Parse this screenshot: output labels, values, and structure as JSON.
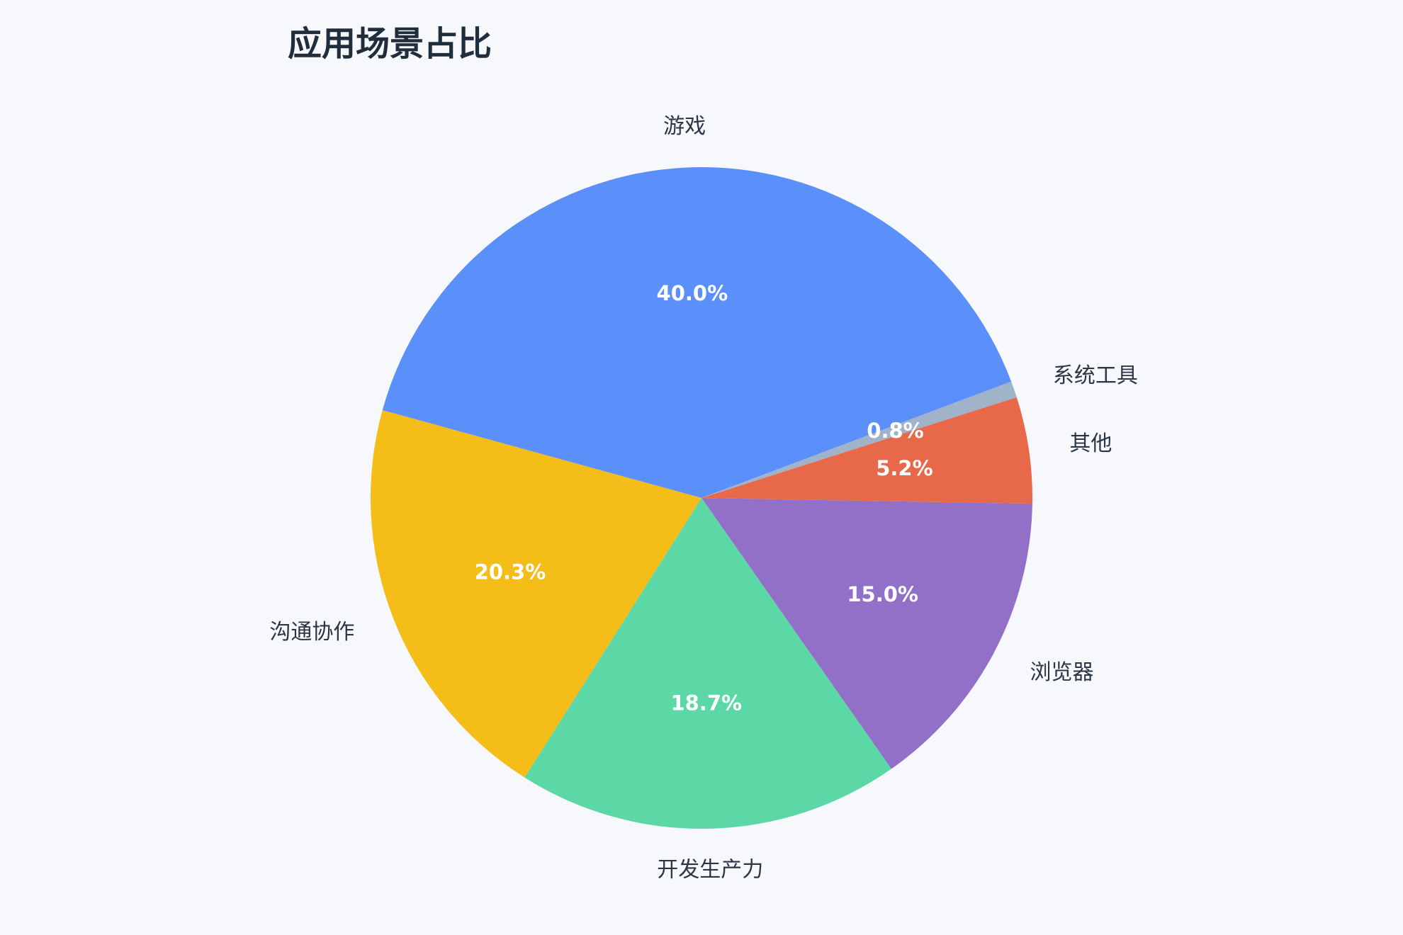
{
  "chart_data": {
    "type": "pie",
    "title": "应用场景占比",
    "slices": [
      {
        "label": "浏览器",
        "value": 15.0,
        "color": "#9370c8"
      },
      {
        "label": "开发生产力",
        "value": 18.7,
        "color": "#5cd8a7"
      },
      {
        "label": "沟通协作",
        "value": 20.3,
        "color": "#f5bd17"
      },
      {
        "label": "游戏",
        "value": 40.0,
        "color": "#5b8ff9"
      },
      {
        "label": "系统工具",
        "value": 0.8,
        "color": "#a1b3c8"
      },
      {
        "label": "其他",
        "value": 5.2,
        "color": "#e8694a"
      }
    ],
    "percent_labels": [
      "15.0%",
      "18.7%",
      "20.3%",
      "40.0%",
      "0.8%",
      "5.2%"
    ]
  }
}
